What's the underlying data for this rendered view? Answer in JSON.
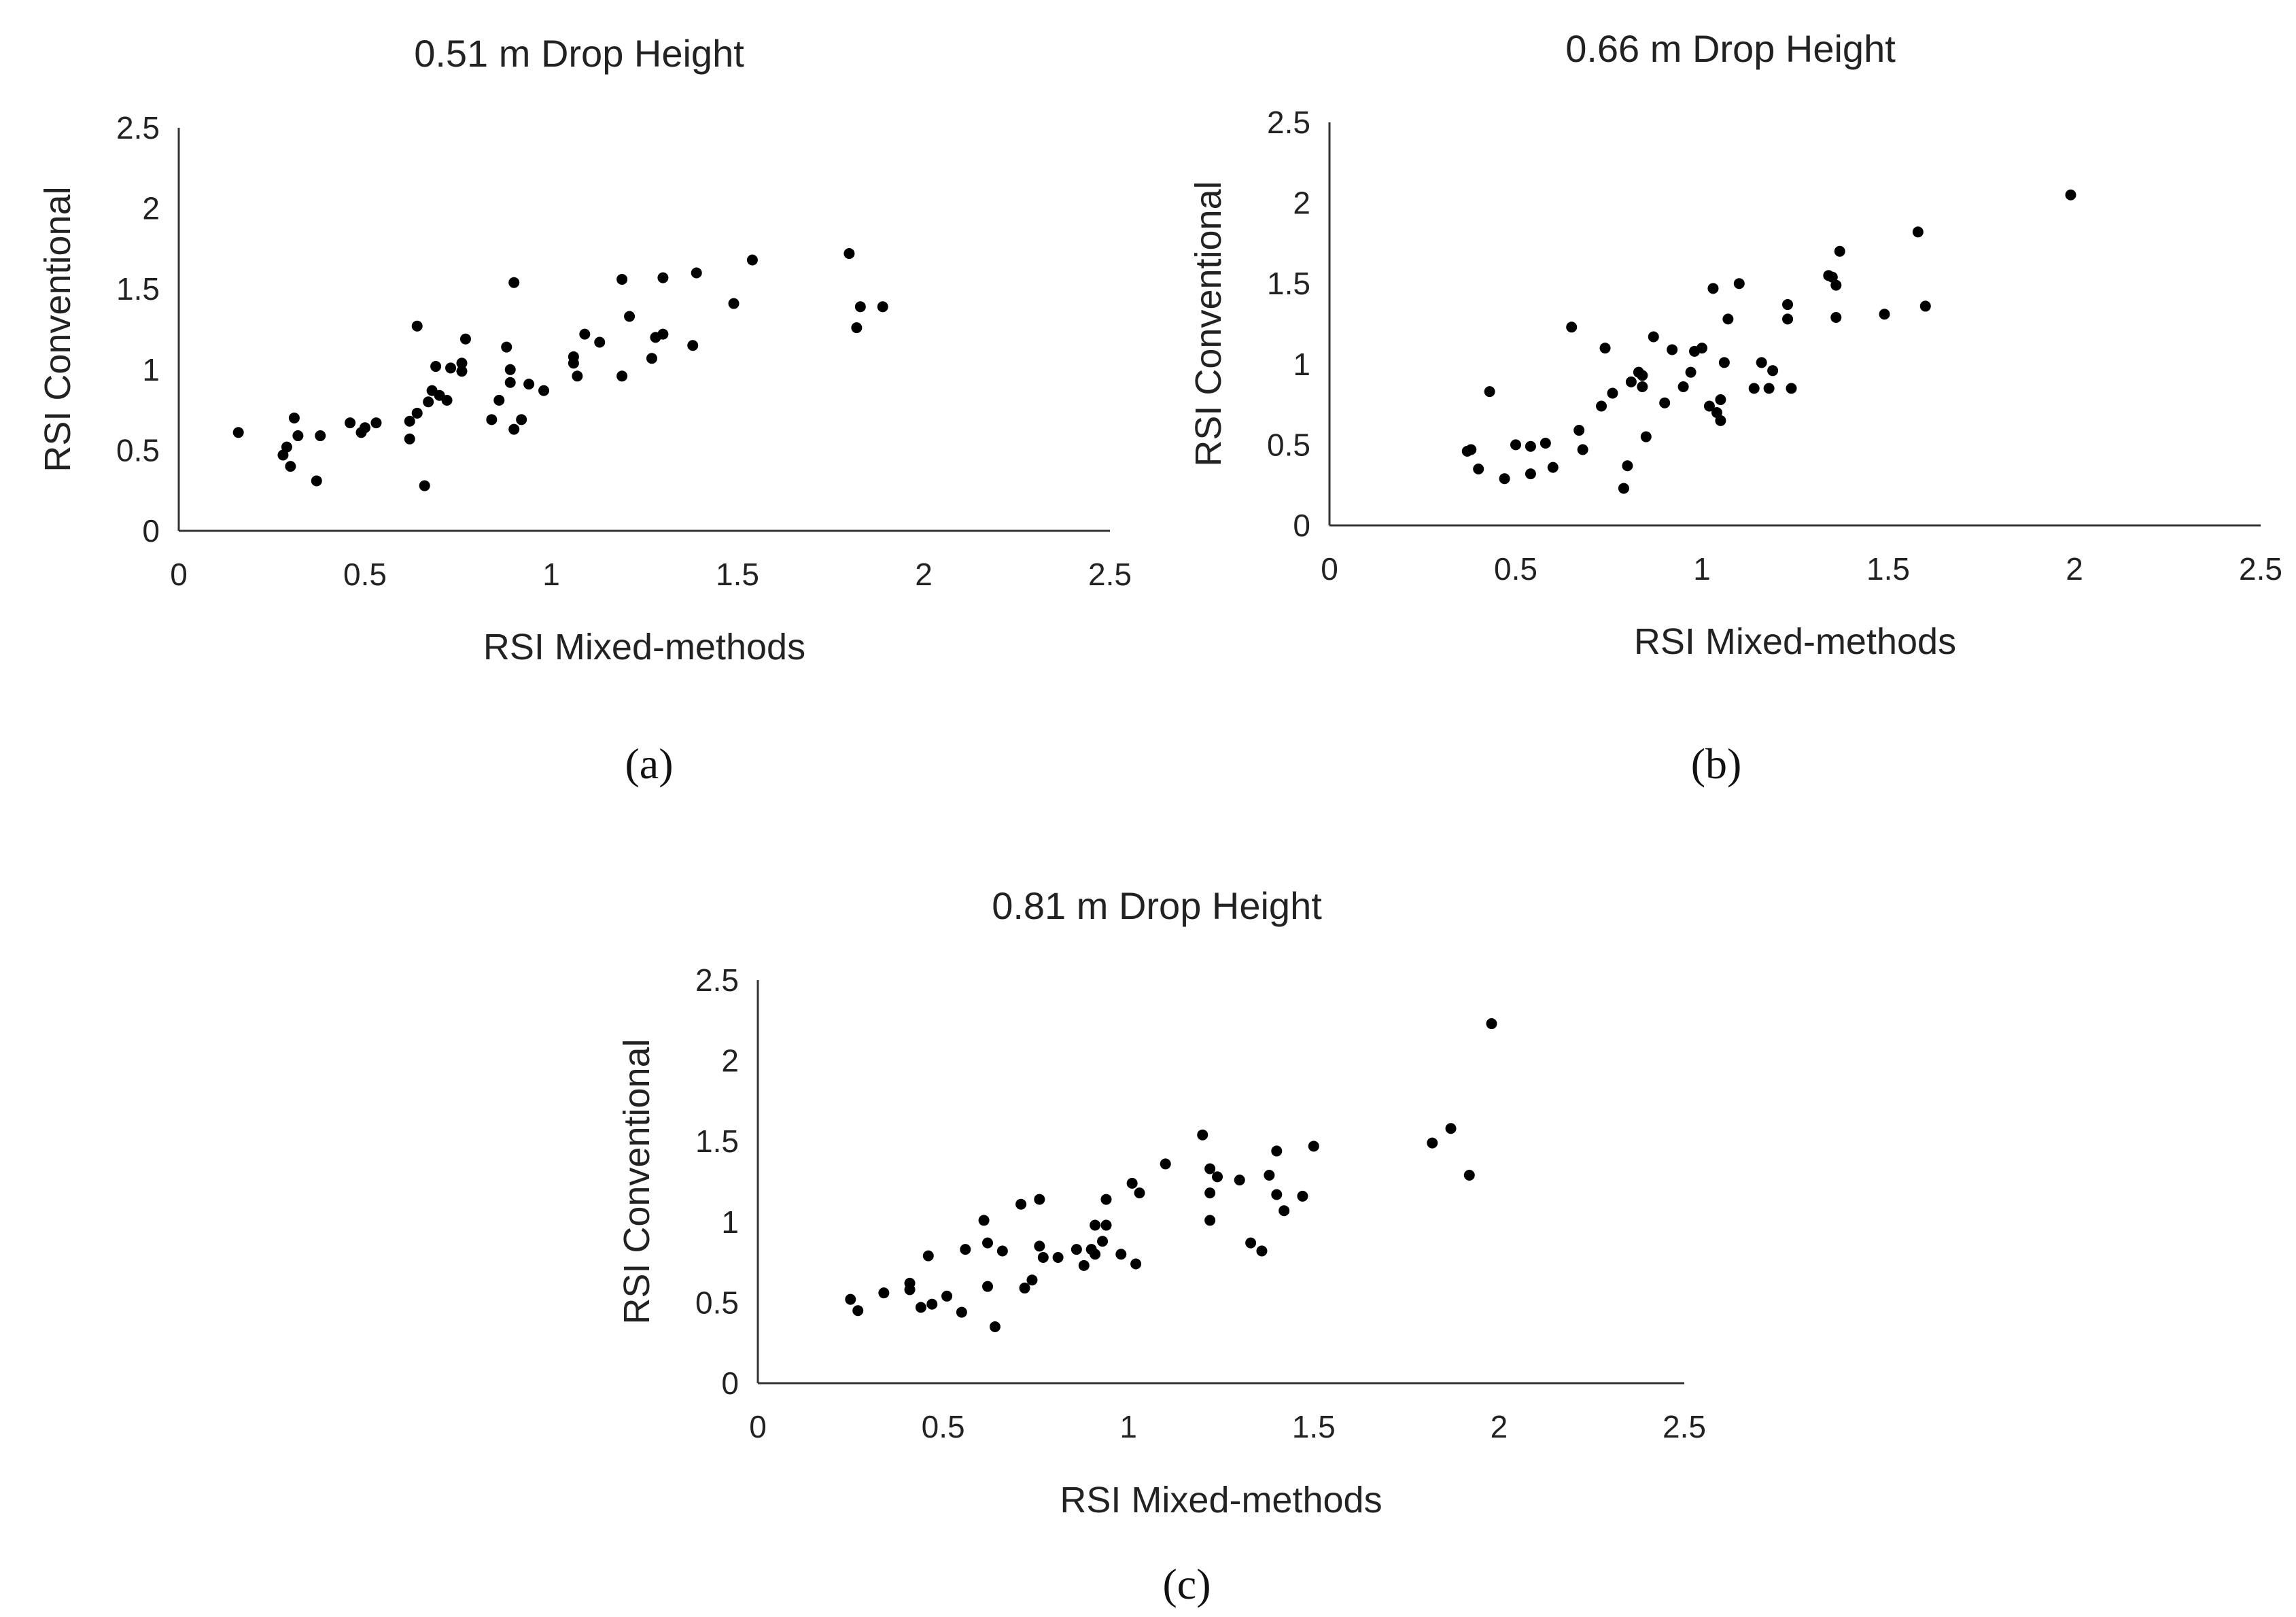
{
  "chart_data": [
    {
      "type": "scatter",
      "title": "0.51 m Drop Height",
      "caption": "(a)",
      "xlabel": "RSI Mixed-methods",
      "ylabel": "RSI Conventional",
      "xlim": [
        0,
        2.5
      ],
      "ylim": [
        0,
        2.5
      ],
      "xticks": [
        "0",
        "0.5",
        "1",
        "1.5",
        "2",
        "2.5"
      ],
      "yticks": [
        "0",
        "0.5",
        "1",
        "1.5",
        "2",
        "2.5"
      ],
      "grid": false,
      "points": [
        [
          0.16,
          0.61
        ],
        [
          0.28,
          0.47
        ],
        [
          0.29,
          0.52
        ],
        [
          0.3,
          0.4
        ],
        [
          0.31,
          0.7
        ],
        [
          0.32,
          0.59
        ],
        [
          0.37,
          0.31
        ],
        [
          0.38,
          0.59
        ],
        [
          0.46,
          0.67
        ],
        [
          0.49,
          0.61
        ],
        [
          0.5,
          0.64
        ],
        [
          0.53,
          0.67
        ],
        [
          0.62,
          0.57
        ],
        [
          0.62,
          0.68
        ],
        [
          0.64,
          0.73
        ],
        [
          0.64,
          1.27
        ],
        [
          0.66,
          0.28
        ],
        [
          0.67,
          0.8
        ],
        [
          0.68,
          0.87
        ],
        [
          0.69,
          1.02
        ],
        [
          0.7,
          0.84
        ],
        [
          0.72,
          0.81
        ],
        [
          0.73,
          1.01
        ],
        [
          0.76,
          0.99
        ],
        [
          0.76,
          1.04
        ],
        [
          0.77,
          1.19
        ],
        [
          0.84,
          0.69
        ],
        [
          0.86,
          0.81
        ],
        [
          0.88,
          1.14
        ],
        [
          0.89,
          1.0
        ],
        [
          0.89,
          0.92
        ],
        [
          0.9,
          0.63
        ],
        [
          0.9,
          1.54
        ],
        [
          0.92,
          0.69
        ],
        [
          0.94,
          0.91
        ],
        [
          0.98,
          0.87
        ],
        [
          1.06,
          1.04
        ],
        [
          1.06,
          1.08
        ],
        [
          1.07,
          0.96
        ],
        [
          1.09,
          1.22
        ],
        [
          1.13,
          1.17
        ],
        [
          1.19,
          0.96
        ],
        [
          1.19,
          1.56
        ],
        [
          1.21,
          1.33
        ],
        [
          1.27,
          1.07
        ],
        [
          1.28,
          1.2
        ],
        [
          1.3,
          1.22
        ],
        [
          1.3,
          1.57
        ],
        [
          1.38,
          1.15
        ],
        [
          1.39,
          1.6
        ],
        [
          1.49,
          1.41
        ],
        [
          1.54,
          1.68
        ],
        [
          1.8,
          1.72
        ],
        [
          1.82,
          1.26
        ],
        [
          1.83,
          1.39
        ],
        [
          1.89,
          1.39
        ]
      ]
    },
    {
      "type": "scatter",
      "title": "0.66 m Drop Height",
      "caption": "(b)",
      "xlabel": "RSI Mixed-methods",
      "ylabel": "RSI Conventional",
      "xlim": [
        0,
        2.5
      ],
      "ylim": [
        0,
        2.5
      ],
      "xticks": [
        "0",
        "0.5",
        "1",
        "1.5",
        "2",
        "2.5"
      ],
      "yticks": [
        "0",
        "0.5",
        "1",
        "1.5",
        "2",
        "2.5"
      ],
      "grid": false,
      "points": [
        [
          0.37,
          0.46
        ],
        [
          0.38,
          0.47
        ],
        [
          0.4,
          0.35
        ],
        [
          0.43,
          0.83
        ],
        [
          0.47,
          0.29
        ],
        [
          0.5,
          0.5
        ],
        [
          0.54,
          0.32
        ],
        [
          0.54,
          0.49
        ],
        [
          0.58,
          0.51
        ],
        [
          0.6,
          0.36
        ],
        [
          0.65,
          1.23
        ],
        [
          0.67,
          0.59
        ],
        [
          0.68,
          0.47
        ],
        [
          0.73,
          0.74
        ],
        [
          0.74,
          1.1
        ],
        [
          0.76,
          0.82
        ],
        [
          0.79,
          0.23
        ],
        [
          0.8,
          0.37
        ],
        [
          0.81,
          0.89
        ],
        [
          0.83,
          0.95
        ],
        [
          0.84,
          0.93
        ],
        [
          0.84,
          0.86
        ],
        [
          0.85,
          0.55
        ],
        [
          0.87,
          1.17
        ],
        [
          0.9,
          0.76
        ],
        [
          0.92,
          1.09
        ],
        [
          0.95,
          0.86
        ],
        [
          0.97,
          0.95
        ],
        [
          0.98,
          1.08
        ],
        [
          1.0,
          1.1
        ],
        [
          1.02,
          0.74
        ],
        [
          1.03,
          1.47
        ],
        [
          1.04,
          0.7
        ],
        [
          1.05,
          0.65
        ],
        [
          1.05,
          0.78
        ],
        [
          1.06,
          1.01
        ],
        [
          1.07,
          1.28
        ],
        [
          1.1,
          1.5
        ],
        [
          1.14,
          0.85
        ],
        [
          1.16,
          1.01
        ],
        [
          1.18,
          0.85
        ],
        [
          1.19,
          0.96
        ],
        [
          1.23,
          1.37
        ],
        [
          1.23,
          1.28
        ],
        [
          1.24,
          0.85
        ],
        [
          1.34,
          1.55
        ],
        [
          1.35,
          1.54
        ],
        [
          1.36,
          1.29
        ],
        [
          1.36,
          1.49
        ],
        [
          1.37,
          1.7
        ],
        [
          1.49,
          1.31
        ],
        [
          1.58,
          1.82
        ],
        [
          1.6,
          1.36
        ],
        [
          1.99,
          2.05
        ]
      ]
    },
    {
      "type": "scatter",
      "title": "0.81 m Drop Height",
      "caption": "(c)",
      "xlabel": "RSI Mixed-methods",
      "ylabel": "RSI Conventional",
      "xlim": [
        0,
        2.5
      ],
      "ylim": [
        0,
        2.5
      ],
      "xticks": [
        "0",
        "0.5",
        "1",
        "1.5",
        "2",
        "2.5"
      ],
      "yticks": [
        "0",
        "0.5",
        "1",
        "1.5",
        "2",
        "2.5"
      ],
      "grid": false,
      "points": [
        [
          0.25,
          0.52
        ],
        [
          0.27,
          0.45
        ],
        [
          0.34,
          0.56
        ],
        [
          0.41,
          0.62
        ],
        [
          0.41,
          0.58
        ],
        [
          0.44,
          0.47
        ],
        [
          0.46,
          0.79
        ],
        [
          0.47,
          0.49
        ],
        [
          0.51,
          0.54
        ],
        [
          0.55,
          0.44
        ],
        [
          0.56,
          0.83
        ],
        [
          0.61,
          1.01
        ],
        [
          0.62,
          0.6
        ],
        [
          0.62,
          0.87
        ],
        [
          0.64,
          0.35
        ],
        [
          0.66,
          0.82
        ],
        [
          0.71,
          1.11
        ],
        [
          0.72,
          0.59
        ],
        [
          0.74,
          0.64
        ],
        [
          0.76,
          0.85
        ],
        [
          0.76,
          1.14
        ],
        [
          0.77,
          0.78
        ],
        [
          0.81,
          0.78
        ],
        [
          0.86,
          0.83
        ],
        [
          0.88,
          0.73
        ],
        [
          0.9,
          0.83
        ],
        [
          0.91,
          0.98
        ],
        [
          0.91,
          0.8
        ],
        [
          0.93,
          0.88
        ],
        [
          0.94,
          1.14
        ],
        [
          0.94,
          0.98
        ],
        [
          0.98,
          0.8
        ],
        [
          1.01,
          1.24
        ],
        [
          1.02,
          0.74
        ],
        [
          1.03,
          1.18
        ],
        [
          1.1,
          1.36
        ],
        [
          1.2,
          1.54
        ],
        [
          1.22,
          1.33
        ],
        [
          1.22,
          1.18
        ],
        [
          1.22,
          1.01
        ],
        [
          1.24,
          1.28
        ],
        [
          1.3,
          1.26
        ],
        [
          1.33,
          0.87
        ],
        [
          1.36,
          0.82
        ],
        [
          1.38,
          1.29
        ],
        [
          1.4,
          1.44
        ],
        [
          1.4,
          1.17
        ],
        [
          1.42,
          1.07
        ],
        [
          1.47,
          1.16
        ],
        [
          1.5,
          1.47
        ],
        [
          1.82,
          1.49
        ],
        [
          1.87,
          1.58
        ],
        [
          1.92,
          1.29
        ],
        [
          1.98,
          2.23
        ]
      ]
    }
  ]
}
